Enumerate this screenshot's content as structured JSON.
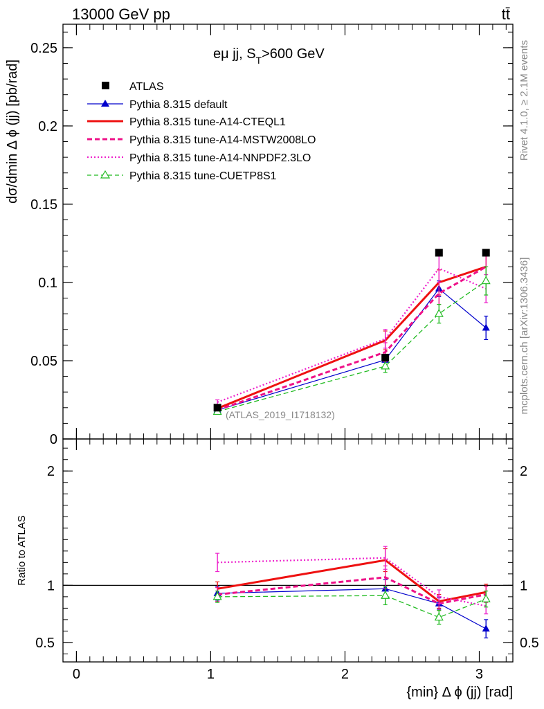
{
  "header": {
    "left": "13000 GeV pp",
    "right": "tt̄"
  },
  "side_labels": {
    "rivet": "Rivet 4.1.0, ≥ 2.1M events",
    "mcplots": "mcplots.cern.ch [arXiv:1306.3436]"
  },
  "chart_data": [
    {
      "type": "line",
      "panel": "main",
      "title": "eμ jj, S_T>600 GeV",
      "title_main": "eμ jj, S",
      "title_sub": "T",
      "title_tail": ">600 GeV",
      "ylabel": "dσ/dmin Δ ϕ (jj) [pb/rad]",
      "xlabel": "",
      "xlim": [
        -0.1,
        3.25
      ],
      "ylim": [
        0,
        0.265
      ],
      "yticks": [
        0,
        0.05,
        0.1,
        0.15,
        0.2,
        0.25
      ],
      "ytick_labels": [
        "0",
        "0.05",
        "0.1",
        "0.15",
        "0.2",
        "0.25"
      ],
      "annotation": "(ATLAS_2019_I1718132)",
      "legend_position": "top-left",
      "data": {
        "name": "ATLAS",
        "x": [
          1.05,
          2.3,
          2.7,
          3.05
        ],
        "y": [
          0.02,
          0.052,
          0.119,
          0.119
        ]
      },
      "series": [
        {
          "name": "Pythia 8.315 default",
          "color": "#0000cc",
          "style": "solid",
          "width": 1.2,
          "marker": "triangle-filled",
          "x": [
            1.05,
            2.3,
            2.7,
            3.05
          ],
          "y": [
            0.0185,
            0.0505,
            0.096,
            0.071
          ],
          "err": [
            0.0015,
            0.0035,
            0.005,
            0.0075
          ]
        },
        {
          "name": "Pythia 8.315 tune-A14-CTEQL1",
          "color": "#ee1111",
          "style": "solid",
          "width": 3,
          "marker": "none",
          "x": [
            1.05,
            2.3,
            2.7,
            3.05
          ],
          "y": [
            0.0195,
            0.063,
            0.1,
            0.11
          ],
          "err": [
            0.0015,
            0.006,
            0.008,
            0.009
          ]
        },
        {
          "name": "Pythia 8.315 tune-A14-MSTW2008LO",
          "color": "#ee1188",
          "style": "dashed",
          "width": 3,
          "marker": "none",
          "x": [
            1.05,
            2.3,
            2.7,
            3.05
          ],
          "y": [
            0.0185,
            0.0555,
            0.093,
            0.11
          ],
          "err": [
            0.0015,
            0.006,
            0.007,
            0.009
          ]
        },
        {
          "name": "Pythia 8.315 tune-A14-NNPDF2.3LO",
          "color": "#ee22cc",
          "style": "dotted",
          "width": 2.2,
          "marker": "none",
          "x": [
            1.05,
            2.3,
            2.7,
            3.05
          ],
          "y": [
            0.0235,
            0.064,
            0.109,
            0.096
          ],
          "err": [
            0.0015,
            0.006,
            0.009,
            0.009
          ]
        },
        {
          "name": "Pythia 8.315 tune-CUETP8S1",
          "color": "#22bb22",
          "style": "dashed",
          "width": 1.3,
          "marker": "triangle-open",
          "x": [
            1.05,
            2.3,
            2.7,
            3.05
          ],
          "y": [
            0.0175,
            0.0465,
            0.08,
            0.101
          ],
          "err": [
            0.0015,
            0.004,
            0.006,
            0.009
          ]
        }
      ]
    },
    {
      "type": "line",
      "panel": "ratio",
      "ylabel": "Ratio to ATLAS",
      "xlabel": "{min} Δ ϕ (jj) [rad]",
      "xlim": [
        -0.1,
        3.25
      ],
      "ylim": [
        0.33,
        2.28
      ],
      "xticks": [
        0,
        1,
        2,
        3
      ],
      "xtick_labels": [
        "0",
        "1",
        "2",
        "3"
      ],
      "yticks": [
        0.5,
        1,
        2
      ],
      "ytick_labels": [
        "0.5",
        "1",
        "2"
      ],
      "reference_line": 1,
      "series": [
        {
          "name": "Pythia 8.315 default",
          "color": "#0000cc",
          "style": "solid",
          "width": 1.2,
          "marker": "triangle-filled",
          "x": [
            1.05,
            2.3,
            2.7,
            3.05
          ],
          "y": [
            0.93,
            0.97,
            0.84,
            0.62
          ],
          "err": [
            0.06,
            0.08,
            0.05,
            0.08
          ]
        },
        {
          "name": "Pythia 8.315 tune-A14-CTEQL1",
          "color": "#ee1111",
          "style": "solid",
          "width": 3,
          "marker": "none",
          "x": [
            1.05,
            2.3,
            2.7,
            3.05
          ],
          "y": [
            0.97,
            1.22,
            0.86,
            0.94
          ],
          "err": [
            0.06,
            0.1,
            0.06,
            0.07
          ]
        },
        {
          "name": "Pythia 8.315 tune-A14-MSTW2008LO",
          "color": "#ee1188",
          "style": "dashed",
          "width": 3,
          "marker": "none",
          "x": [
            1.05,
            2.3,
            2.7,
            3.05
          ],
          "y": [
            0.92,
            1.07,
            0.84,
            0.92
          ],
          "err": [
            0.06,
            0.1,
            0.06,
            0.07
          ]
        },
        {
          "name": "Pythia 8.315 tune-A14-NNPDF2.3LO",
          "color": "#ee22cc",
          "style": "dotted",
          "width": 2.2,
          "marker": "none",
          "x": [
            1.05,
            2.3,
            2.7,
            3.05
          ],
          "y": [
            1.2,
            1.24,
            0.9,
            0.82
          ],
          "err": [
            0.08,
            0.1,
            0.06,
            0.07
          ]
        },
        {
          "name": "Pythia 8.315 tune-CUETP8S1",
          "color": "#22bb22",
          "style": "dashed",
          "width": 1.3,
          "marker": "triangle-open",
          "x": [
            1.05,
            2.3,
            2.7,
            3.05
          ],
          "y": [
            0.9,
            0.91,
            0.72,
            0.88
          ],
          "err": [
            0.05,
            0.08,
            0.06,
            0.07
          ]
        }
      ]
    }
  ]
}
